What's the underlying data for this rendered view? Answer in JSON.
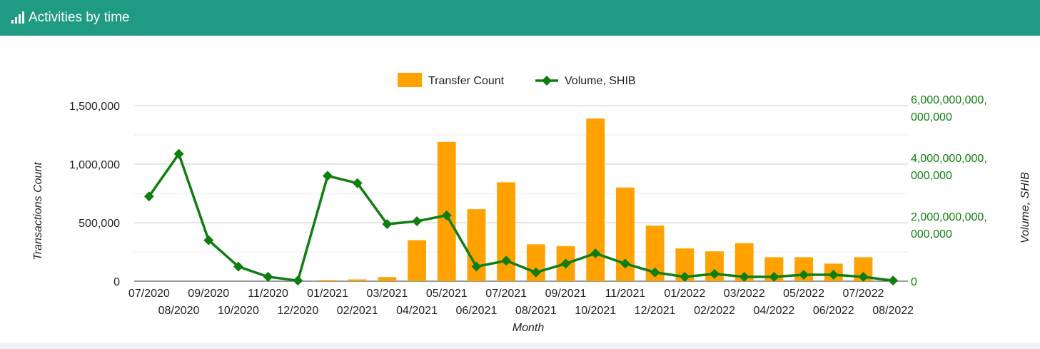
{
  "header": {
    "title": "Activities by time",
    "icon": "bar-chart-icon",
    "background": "#1f9a83"
  },
  "chart_data": {
    "type": "bar",
    "categories": [
      "07/2020",
      "08/2020",
      "09/2020",
      "10/2020",
      "11/2020",
      "12/2020",
      "01/2021",
      "02/2021",
      "03/2021",
      "04/2021",
      "05/2021",
      "06/2021",
      "07/2021",
      "08/2021",
      "09/2021",
      "10/2021",
      "11/2021",
      "12/2021",
      "01/2022",
      "02/2022",
      "03/2022",
      "04/2022",
      "05/2022",
      "06/2022",
      "07/2022",
      "08/2022"
    ],
    "xlabel": "Month",
    "series": [
      {
        "name": "Transfer Count",
        "type": "bar",
        "axis": "left",
        "color": "#ffa200",
        "values": [
          0,
          0,
          0,
          0,
          0,
          0,
          10000,
          15000,
          35000,
          350000,
          1190000,
          615000,
          845000,
          315000,
          300000,
          1390000,
          800000,
          475000,
          280000,
          255000,
          325000,
          205000,
          205000,
          150000,
          205000,
          0
        ]
      },
      {
        "name": "Volume, SHIB",
        "type": "line",
        "axis": "right",
        "color": "#0e7f0e",
        "values": [
          2900000000000000,
          4350000000000000,
          1400000000000000,
          500000000000000,
          150000000000000,
          20000000000000,
          3600000000000000,
          3350000000000000,
          1950000000000000,
          2050000000000000,
          2250000000000000,
          500000000000000,
          700000000000000,
          300000000000000,
          600000000000000,
          950000000000000,
          600000000000000,
          300000000000000,
          150000000000000,
          250000000000000,
          150000000000000,
          150000000000000,
          220000000000000,
          220000000000000,
          150000000000000,
          20000000000000
        ]
      }
    ],
    "left_axis": {
      "label": "Transactions Count",
      "ylim": [
        0,
        1500000
      ],
      "ticks": [
        0,
        500000,
        1000000,
        1500000
      ],
      "tick_labels": [
        "0",
        "500,000",
        "1,000,000",
        "1,500,000"
      ]
    },
    "right_axis": {
      "label": "Volume, SHIB",
      "ylim": [
        0,
        6000000000000000
      ],
      "ticks": [
        0,
        2000000000000000,
        4000000000000000,
        6000000000000000
      ],
      "tick_labels": [
        [
          "0"
        ],
        [
          "2,000,000,000,",
          "000,000"
        ],
        [
          "4,000,000,000,",
          "000,000"
        ],
        [
          "6,000,000,000,",
          "000,000"
        ]
      ],
      "color": "#0e7f0e"
    },
    "legend": "top-center",
    "grid": true
  }
}
